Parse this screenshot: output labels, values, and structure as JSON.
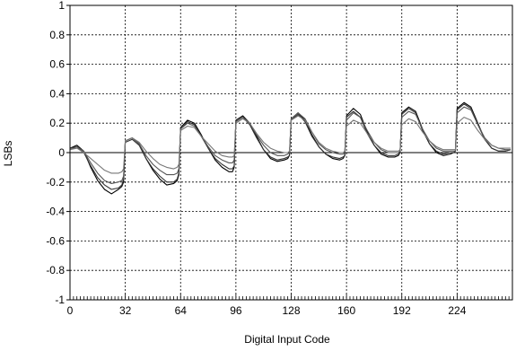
{
  "chart_data": {
    "type": "line",
    "title": "",
    "xlabel": "Digital Input Code",
    "ylabel": "LSBs",
    "xlim": [
      0,
      256
    ],
    "ylim": [
      -1,
      1
    ],
    "x_ticks": [
      0,
      32,
      64,
      96,
      128,
      160,
      192,
      224
    ],
    "x_tick_labels": [
      "0",
      "32",
      "64",
      "96",
      "128",
      "160",
      "192",
      "224"
    ],
    "y_ticks": [
      1,
      0.8,
      0.6,
      0.4,
      0.2,
      0,
      -0.2,
      -0.4,
      -0.6,
      -0.8,
      -1
    ],
    "y_tick_labels": [
      "1",
      "0.8",
      "0.6",
      "0.4",
      "0.2",
      "0",
      "-0.2",
      "-0.4",
      "-0.6",
      "-0.8",
      "-1"
    ],
    "grid": true,
    "zero_line": true,
    "series": [
      {
        "color": "#000000",
        "x": [
          0,
          4,
          8,
          12,
          16,
          20,
          24,
          28,
          30,
          31,
          32,
          36,
          40,
          44,
          48,
          52,
          56,
          60,
          62,
          63,
          64,
          68,
          72,
          76,
          80,
          84,
          88,
          92,
          94,
          95,
          96,
          100,
          104,
          108,
          112,
          116,
          120,
          124,
          126,
          127,
          128,
          132,
          136,
          140,
          144,
          148,
          152,
          156,
          158,
          159,
          160,
          164,
          168,
          172,
          176,
          180,
          184,
          188,
          190,
          191,
          192,
          196,
          200,
          204,
          208,
          212,
          216,
          220,
          222,
          223,
          224,
          228,
          232,
          236,
          240,
          244,
          248,
          252,
          255
        ],
        "y": [
          0.03,
          0.05,
          0.01,
          -0.1,
          -0.19,
          -0.25,
          -0.28,
          -0.25,
          -0.23,
          -0.2,
          0.08,
          0.1,
          0.06,
          -0.04,
          -0.12,
          -0.18,
          -0.22,
          -0.21,
          -0.19,
          -0.15,
          0.17,
          0.22,
          0.2,
          0.12,
          0.03,
          -0.05,
          -0.1,
          -0.13,
          -0.13,
          -0.1,
          0.22,
          0.25,
          0.2,
          0.11,
          0.02,
          -0.04,
          -0.06,
          -0.05,
          -0.04,
          -0.02,
          0.23,
          0.27,
          0.22,
          0.12,
          0.04,
          -0.01,
          -0.04,
          -0.05,
          -0.04,
          -0.02,
          0.25,
          0.3,
          0.26,
          0.14,
          0.05,
          -0.01,
          -0.03,
          -0.03,
          -0.02,
          0.0,
          0.27,
          0.31,
          0.28,
          0.16,
          0.06,
          0.0,
          -0.02,
          -0.01,
          0.0,
          0.01,
          0.3,
          0.34,
          0.31,
          0.2,
          0.09,
          0.03,
          0.01,
          0.01,
          0.02
        ]
      },
      {
        "color": "#333333",
        "x": [
          0,
          4,
          8,
          12,
          16,
          20,
          24,
          28,
          30,
          31,
          32,
          36,
          40,
          44,
          48,
          52,
          56,
          60,
          62,
          63,
          64,
          68,
          72,
          76,
          80,
          84,
          88,
          92,
          94,
          95,
          96,
          100,
          104,
          108,
          112,
          116,
          120,
          124,
          126,
          127,
          128,
          132,
          136,
          140,
          144,
          148,
          152,
          156,
          158,
          159,
          160,
          164,
          168,
          172,
          176,
          180,
          184,
          188,
          190,
          191,
          192,
          196,
          200,
          204,
          208,
          212,
          216,
          220,
          222,
          223,
          224,
          228,
          232,
          236,
          240,
          244,
          248,
          252,
          255
        ],
        "y": [
          0.03,
          0.04,
          0.0,
          -0.09,
          -0.17,
          -0.22,
          -0.25,
          -0.24,
          -0.22,
          -0.18,
          0.07,
          0.09,
          0.05,
          -0.04,
          -0.11,
          -0.16,
          -0.2,
          -0.2,
          -0.18,
          -0.14,
          0.16,
          0.21,
          0.19,
          0.11,
          0.03,
          -0.04,
          -0.08,
          -0.11,
          -0.11,
          -0.09,
          0.21,
          0.24,
          0.19,
          0.1,
          0.02,
          -0.03,
          -0.05,
          -0.04,
          -0.03,
          -0.02,
          0.22,
          0.26,
          0.21,
          0.11,
          0.04,
          -0.01,
          -0.03,
          -0.04,
          -0.03,
          -0.02,
          0.24,
          0.28,
          0.24,
          0.13,
          0.05,
          0.0,
          -0.02,
          -0.02,
          -0.01,
          0.0,
          0.26,
          0.3,
          0.27,
          0.15,
          0.06,
          0.01,
          -0.01,
          0.0,
          0.0,
          0.01,
          0.29,
          0.33,
          0.3,
          0.19,
          0.09,
          0.03,
          0.01,
          0.01,
          0.02
        ]
      },
      {
        "color": "#555555",
        "x": [
          0,
          4,
          8,
          12,
          16,
          20,
          24,
          28,
          30,
          31,
          32,
          36,
          40,
          44,
          48,
          52,
          56,
          60,
          62,
          63,
          64,
          68,
          72,
          76,
          80,
          84,
          88,
          92,
          94,
          95,
          96,
          100,
          104,
          108,
          112,
          116,
          120,
          124,
          126,
          127,
          128,
          132,
          136,
          140,
          144,
          148,
          152,
          156,
          158,
          159,
          160,
          164,
          168,
          172,
          176,
          180,
          184,
          188,
          190,
          191,
          192,
          196,
          200,
          204,
          208,
          212,
          216,
          220,
          222,
          223,
          224,
          228,
          232,
          236,
          240,
          244,
          248,
          252,
          255
        ],
        "y": [
          0.02,
          0.04,
          0.01,
          -0.07,
          -0.14,
          -0.19,
          -0.21,
          -0.2,
          -0.19,
          -0.16,
          0.08,
          0.1,
          0.06,
          -0.02,
          -0.08,
          -0.12,
          -0.15,
          -0.15,
          -0.14,
          -0.11,
          0.16,
          0.2,
          0.18,
          0.11,
          0.04,
          -0.02,
          -0.05,
          -0.07,
          -0.07,
          -0.05,
          0.21,
          0.24,
          0.2,
          0.12,
          0.05,
          0.0,
          -0.02,
          -0.02,
          -0.01,
          0.0,
          0.23,
          0.27,
          0.23,
          0.14,
          0.06,
          0.02,
          0.0,
          -0.01,
          -0.01,
          0.0,
          0.22,
          0.27,
          0.24,
          0.15,
          0.07,
          0.02,
          0.0,
          0.0,
          0.0,
          0.01,
          0.24,
          0.28,
          0.26,
          0.16,
          0.08,
          0.03,
          0.01,
          0.01,
          0.01,
          0.01,
          0.27,
          0.31,
          0.29,
          0.19,
          0.1,
          0.05,
          0.03,
          0.02,
          0.02
        ]
      },
      {
        "color": "#777777",
        "x": [
          0,
          4,
          8,
          12,
          16,
          20,
          24,
          28,
          30,
          31,
          32,
          36,
          40,
          44,
          48,
          52,
          56,
          60,
          62,
          63,
          64,
          68,
          72,
          76,
          80,
          84,
          88,
          92,
          94,
          95,
          96,
          100,
          104,
          108,
          112,
          116,
          120,
          124,
          126,
          127,
          128,
          132,
          136,
          140,
          144,
          148,
          152,
          156,
          158,
          159,
          160,
          164,
          168,
          172,
          176,
          180,
          184,
          188,
          190,
          191,
          192,
          196,
          200,
          204,
          208,
          212,
          216,
          220,
          222,
          223,
          224,
          228,
          232,
          236,
          240,
          244,
          248,
          252,
          255
        ],
        "y": [
          0.02,
          0.03,
          0.0,
          -0.04,
          -0.08,
          -0.12,
          -0.14,
          -0.14,
          -0.13,
          -0.11,
          0.08,
          0.1,
          0.07,
          0.01,
          -0.04,
          -0.08,
          -0.1,
          -0.11,
          -0.1,
          -0.08,
          0.15,
          0.18,
          0.17,
          0.11,
          0.06,
          0.01,
          -0.02,
          -0.03,
          -0.03,
          -0.02,
          0.2,
          0.23,
          0.2,
          0.13,
          0.07,
          0.03,
          0.01,
          0.0,
          0.0,
          0.01,
          0.22,
          0.25,
          0.22,
          0.14,
          0.07,
          0.03,
          0.01,
          0.0,
          0.0,
          0.01,
          0.18,
          0.22,
          0.2,
          0.13,
          0.07,
          0.03,
          0.01,
          0.01,
          0.01,
          0.02,
          0.19,
          0.23,
          0.21,
          0.14,
          0.08,
          0.04,
          0.02,
          0.02,
          0.02,
          0.02,
          0.2,
          0.24,
          0.22,
          0.15,
          0.09,
          0.05,
          0.03,
          0.03,
          0.03
        ]
      }
    ]
  }
}
